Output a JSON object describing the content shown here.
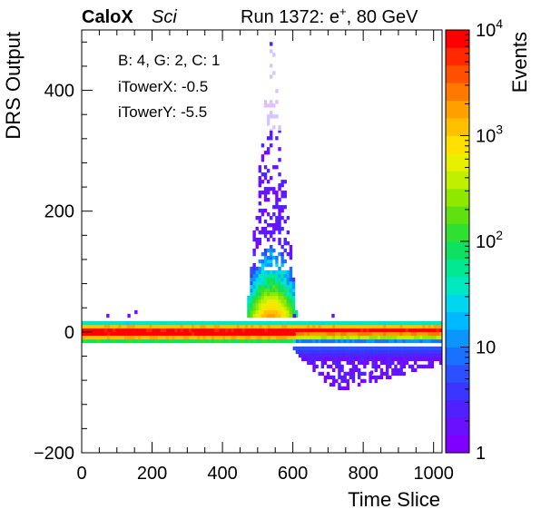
{
  "header": {
    "experiment": "CaloX",
    "tag": "Sci",
    "run_prefix": "Run 1372: e",
    "run_sup": "+",
    "run_suffix": ", 80 GeV"
  },
  "info_box": {
    "line1": "B: 4, G: 2, C: 1",
    "line2": "iTowerX: -0.5",
    "line3": "iTowerY: -5.5"
  },
  "colors": {
    "palette": [
      "#7f00ff",
      "#6a10ff",
      "#5020ff",
      "#3b35ff",
      "#2a50ff",
      "#1a70ff",
      "#0a95ff",
      "#00b8ff",
      "#00d6f0",
      "#00e8c0",
      "#00e890",
      "#10e060",
      "#30e030",
      "#60e010",
      "#90e800",
      "#c0f000",
      "#e8f000",
      "#ffe000",
      "#ffc000",
      "#ffa000",
      "#ff7800",
      "#ff5000",
      "#ff2800",
      "#ff0000"
    ]
  },
  "chart_data": {
    "type": "heatmap",
    "xlabel": "Time Slice",
    "ylabel": "DRS Output",
    "zlabel": "Events",
    "xlim": [
      0,
      1024
    ],
    "ylim": [
      -200,
      500
    ],
    "zlim": [
      1,
      10000
    ],
    "z_scale": "log",
    "x_ticks": [
      0,
      200,
      400,
      600,
      800,
      1000
    ],
    "y_ticks": [
      -200,
      0,
      200,
      400
    ],
    "z_ticks": [
      {
        "base": "10",
        "exp": "4",
        "value": 10000
      },
      {
        "base": "10",
        "exp": "3",
        "value": 1000
      },
      {
        "base": "10",
        "exp": "2",
        "value": 100
      },
      {
        "base": "10",
        "exp": "",
        "value": 10
      },
      {
        "base": "1",
        "exp": "",
        "value": 1
      }
    ],
    "features": {
      "baseline_band": {
        "y_center": 0,
        "x_range": [
          0,
          1024
        ],
        "peak_events": 10000
      },
      "pulse": {
        "x_center": 540,
        "x_range": [
          470,
          620
        ],
        "y_max": 500
      },
      "undershoot": {
        "x_range": [
          600,
          1024
        ],
        "y_min": -110
      }
    }
  }
}
